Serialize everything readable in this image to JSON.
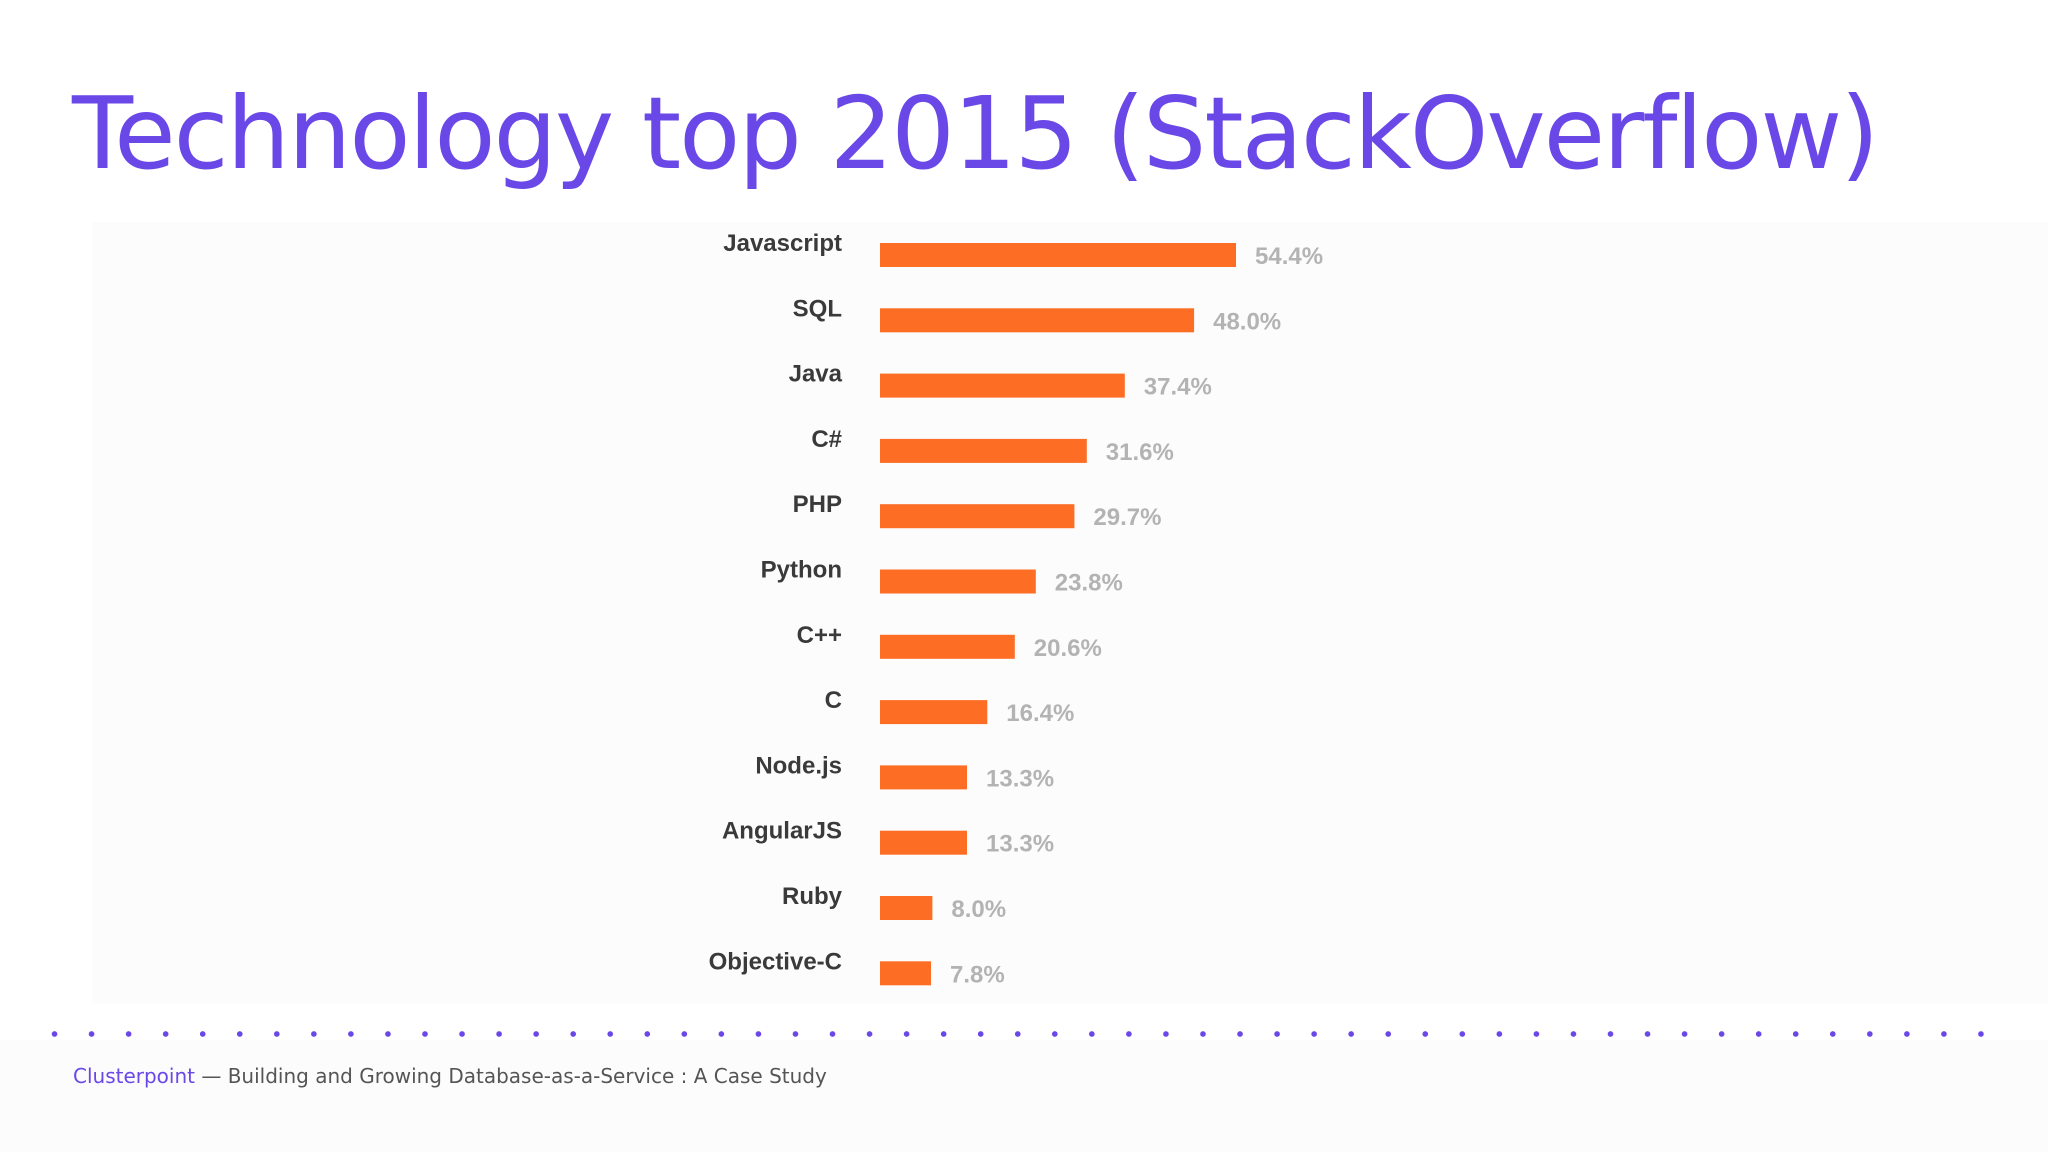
{
  "slide": {
    "title": "Technology top 2015 (StackOverflow)"
  },
  "chart_data": {
    "type": "bar",
    "orientation": "horizontal",
    "title": "",
    "xlabel": "",
    "ylabel": "",
    "categories": [
      "Javascript",
      "SQL",
      "Java",
      "C#",
      "PHP",
      "Python",
      "C++",
      "C",
      "Node.js",
      "AngularJS",
      "Ruby",
      "Objective-C"
    ],
    "values": [
      54.4,
      48.0,
      37.4,
      31.6,
      29.7,
      23.8,
      20.6,
      16.4,
      13.3,
      13.3,
      8.0,
      7.8
    ],
    "value_labels": [
      "54.4%",
      "48.0%",
      "37.4%",
      "31.6%",
      "29.7%",
      "23.8%",
      "20.6%",
      "16.4%",
      "13.3%",
      "13.3%",
      "8.0%",
      "7.8%"
    ],
    "xlim": [
      0,
      54.4
    ],
    "grid": false,
    "legend": "none",
    "bar_color": "#fd6d24",
    "category_label_color": "#3a3a3a",
    "value_label_color": "#b3b3b3"
  },
  "footer": {
    "brand": "Clusterpoint",
    "text": " — Building and Growing Database-as-a-Service : A Case Study"
  },
  "colors": {
    "accent": "#6a48e8",
    "bar": "#fd6d24"
  }
}
